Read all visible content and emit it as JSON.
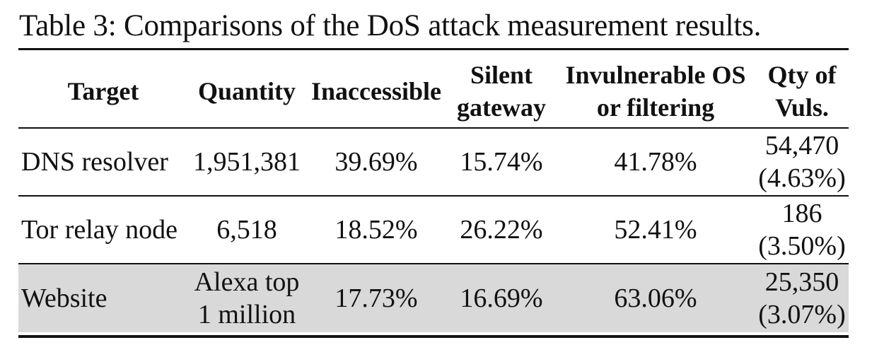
{
  "caption": "Table 3: Comparisons of the DoS attack measurement results.",
  "headers": [
    {
      "line1": "Target",
      "line2": ""
    },
    {
      "line1": "Quantity",
      "line2": ""
    },
    {
      "line1": "Inaccessible",
      "line2": ""
    },
    {
      "line1": "Silent",
      "line2": "gateway"
    },
    {
      "line1": "Invulnerable OS",
      "line2": "or filtering"
    },
    {
      "line1": "Qty of",
      "line2": "Vuls."
    }
  ],
  "rows": [
    {
      "target": "DNS resolver",
      "quantity": {
        "line1": "1,951,381",
        "line2": ""
      },
      "inaccessible": "39.69%",
      "silent_gateway": "15.74%",
      "invulnerable": "41.78%",
      "qty_vuls": {
        "line1": "54,470",
        "line2": "(4.63%)"
      },
      "highlighted": false
    },
    {
      "target": "Tor relay node",
      "quantity": {
        "line1": "6,518",
        "line2": ""
      },
      "inaccessible": "18.52%",
      "silent_gateway": "26.22%",
      "invulnerable": "52.41%",
      "qty_vuls": {
        "line1": "186",
        "line2": "(3.50%)"
      },
      "highlighted": false
    },
    {
      "target": "Website",
      "quantity": {
        "line1": "Alexa top",
        "line2": "1 million"
      },
      "inaccessible": "17.73%",
      "silent_gateway": "16.69%",
      "invulnerable": "63.06%",
      "qty_vuls": {
        "line1": "25,350",
        "line2": "(3.07%)"
      },
      "highlighted": true
    }
  ],
  "colors": {
    "text": "#111111",
    "highlight_row": "#d9d9d9",
    "rules": "#111111"
  }
}
